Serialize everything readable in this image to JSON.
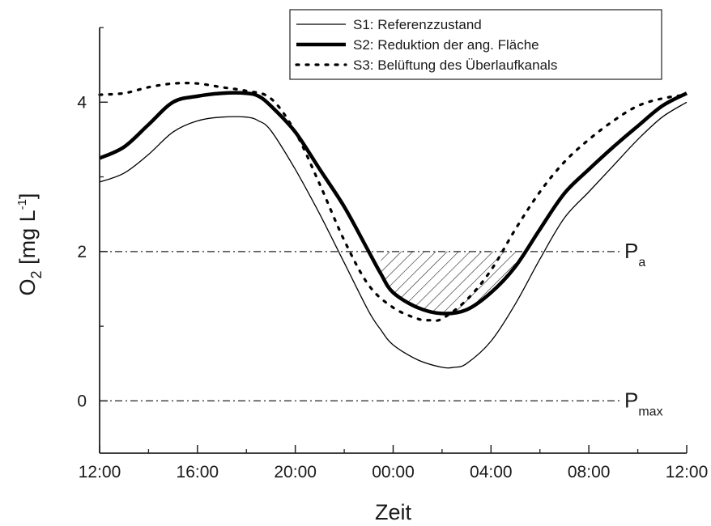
{
  "chart_data": {
    "type": "line",
    "title": "",
    "xlabel": "Zeit",
    "ylabel": {
      "base": "O",
      "sub": "2",
      "unit": " [mg L",
      "sup": "-1",
      "close": "]"
    },
    "x_ticks": [
      "12:00",
      "16:00",
      "20:00",
      "00:00",
      "04:00",
      "08:00",
      "12:00"
    ],
    "y_ticks": [
      "0",
      "2",
      "4"
    ],
    "xlim": [
      0,
      24
    ],
    "ylim": [
      -0.7,
      5.0
    ],
    "x_unit": "hours after 12:00",
    "legend_position": "top-right",
    "series": [
      {
        "name": "S1: Referenzzustand",
        "style": "thin",
        "x": [
          0,
          1,
          2,
          3,
          4,
          5,
          6,
          6.5,
          7,
          8,
          9,
          10,
          11,
          11.5,
          12,
          13,
          14,
          14.5,
          15,
          16,
          17,
          18,
          19,
          20,
          21,
          22,
          23,
          24
        ],
        "y": [
          2.93,
          3.05,
          3.3,
          3.6,
          3.75,
          3.8,
          3.8,
          3.75,
          3.62,
          3.1,
          2.5,
          1.85,
          1.2,
          0.95,
          0.75,
          0.55,
          0.45,
          0.45,
          0.5,
          0.8,
          1.3,
          1.9,
          2.45,
          2.8,
          3.15,
          3.5,
          3.8,
          4.0
        ]
      },
      {
        "name": "S2: Reduktion der ang. Fläche",
        "style": "thick",
        "x": [
          0,
          1,
          2,
          3,
          4,
          5,
          6,
          6.5,
          7,
          8,
          9,
          10,
          11,
          11.5,
          12,
          13,
          14,
          15,
          16,
          17,
          18,
          19,
          20,
          21,
          22,
          23,
          24
        ],
        "y": [
          3.25,
          3.4,
          3.7,
          4.0,
          4.08,
          4.12,
          4.12,
          4.08,
          3.95,
          3.6,
          3.1,
          2.6,
          2.0,
          1.7,
          1.45,
          1.25,
          1.17,
          1.22,
          1.45,
          1.8,
          2.3,
          2.78,
          3.1,
          3.4,
          3.68,
          3.95,
          4.12
        ]
      },
      {
        "name": "S3: Belüftung des Überlaufkanals",
        "style": "dotted",
        "x": [
          0,
          1,
          2,
          3,
          4,
          5,
          6,
          7,
          8,
          9,
          10,
          11,
          12,
          13,
          13.5,
          14,
          15,
          16,
          17,
          18,
          19,
          20,
          21,
          22,
          23,
          24
        ],
        "y": [
          4.1,
          4.12,
          4.2,
          4.25,
          4.25,
          4.2,
          4.15,
          4.05,
          3.6,
          2.9,
          2.15,
          1.55,
          1.25,
          1.1,
          1.08,
          1.1,
          1.35,
          1.75,
          2.3,
          2.8,
          3.2,
          3.5,
          3.75,
          3.95,
          4.05,
          4.1
        ]
      }
    ],
    "reference_lines": [
      {
        "y": 2,
        "label": "P",
        "sub": "a"
      },
      {
        "y": 0,
        "label": "P",
        "sub": "max"
      }
    ],
    "shaded_region": {
      "between": [
        "S2: Reduktion der ang. Fläche",
        2
      ],
      "x_range": [
        11.5,
        17
      ],
      "pattern": "diagonal-hatch"
    }
  }
}
